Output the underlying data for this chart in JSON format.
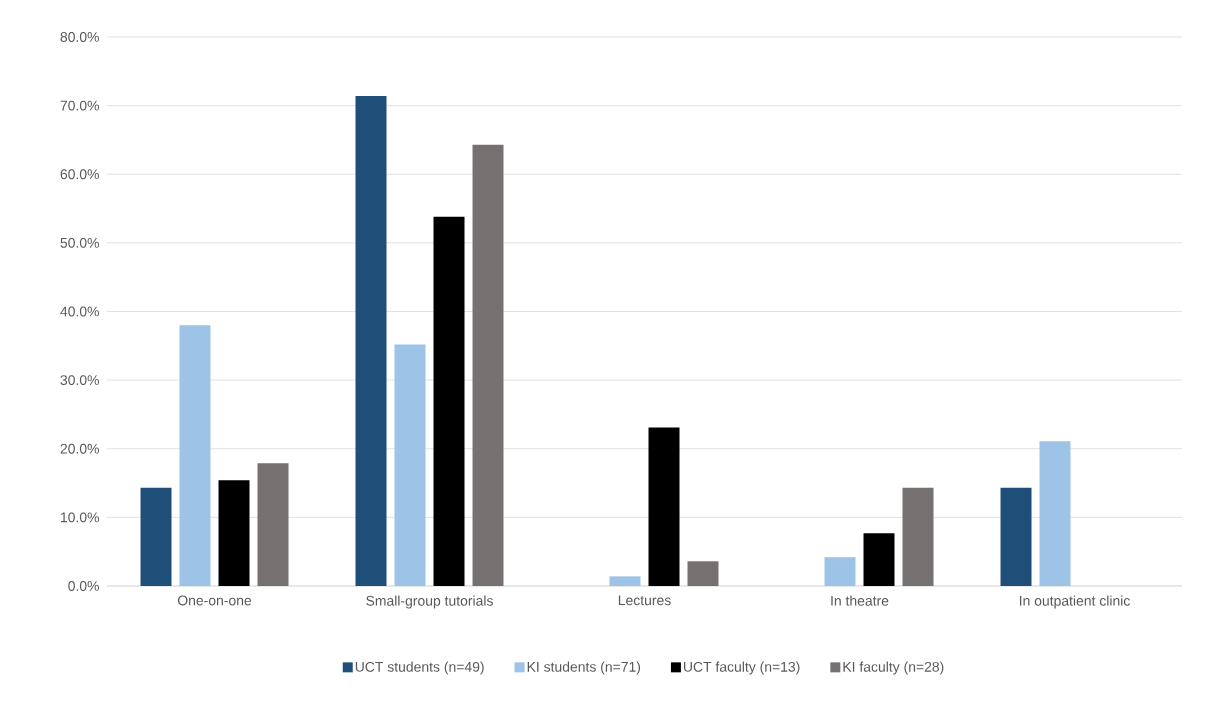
{
  "chart_data": {
    "type": "bar",
    "categories": [
      "One-on-one",
      "Small-group tutorials",
      "Lectures",
      "In theatre",
      "In outpatient clinic"
    ],
    "series": [
      {
        "name": "UCT students (n=49)",
        "color": "#1f4e79",
        "values": [
          14.3,
          71.4,
          0,
          0,
          14.3
        ]
      },
      {
        "name": "KI students (n=71)",
        "color": "#9dc3e6",
        "values": [
          38.0,
          35.2,
          1.4,
          4.2,
          21.1
        ]
      },
      {
        "name": "UCT faculty (n=13)",
        "color": "#000000",
        "values": [
          15.4,
          53.8,
          23.1,
          7.7,
          0
        ]
      },
      {
        "name": "KI faculty (n=28)",
        "color": "#767171",
        "values": [
          17.9,
          64.3,
          3.6,
          14.3,
          0
        ]
      }
    ],
    "ylim": [
      0,
      80
    ],
    "yticks": [
      {
        "value": 0,
        "label": "0.0%"
      },
      {
        "value": 10,
        "label": "10.0%"
      },
      {
        "value": 20,
        "label": "20.0%"
      },
      {
        "value": 30,
        "label": "30.0%"
      },
      {
        "value": 40,
        "label": "40.0%"
      },
      {
        "value": 50,
        "label": "50.0%"
      },
      {
        "value": 60,
        "label": "60.0%"
      },
      {
        "value": 70,
        "label": "70.0%"
      },
      {
        "value": 80,
        "label": "80.0%"
      }
    ],
    "grid": "y",
    "legend": "bottom"
  }
}
